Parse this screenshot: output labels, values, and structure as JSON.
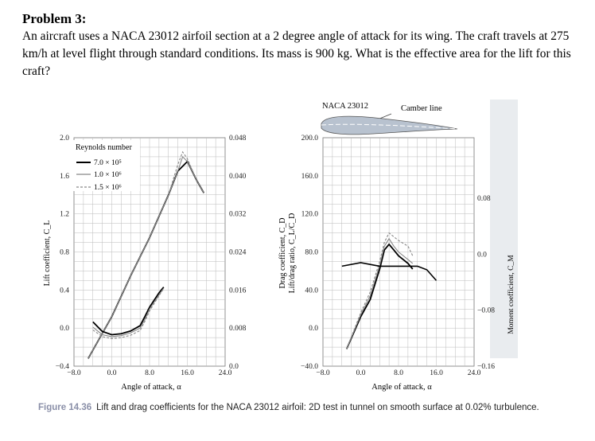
{
  "problem": {
    "title": "Problem 3:",
    "text": "An aircraft uses a NACA 23012 airfoil section at a 2 degree angle of attack for its wing. The craft travels at 275 km/h at level flight through standard conditions. Its mass is 900 kg. What is the effective area for the lift for this craft?"
  },
  "figure": {
    "caption_label": "Figure 14.36",
    "caption_text": "Lift and drag coefficients for the NACA 23012 airfoil: 2D test in tunnel on smooth surface at 0.02% turbulence.",
    "airfoil_label": "NACA 23012",
    "camber_label": "Camber line"
  },
  "chart_data": [
    {
      "type": "line",
      "title": "",
      "xlabel": "Angle of attack, α",
      "ylabel": "Lift coefficient, C_L",
      "ylabel_right": "Drag coefficient, C_D",
      "x_ticks": [
        "−8.0",
        "0.0",
        "8.0",
        "16.0",
        "24.0"
      ],
      "y_ticks": [
        "−0.4",
        "0.0",
        "0.4",
        "0.8",
        "1.2",
        "1.6",
        "2.0"
      ],
      "y_right_ticks": [
        "0.0",
        "0.008",
        "0.016",
        "0.024",
        "0.032",
        "0.040",
        "0.048"
      ],
      "xlim": [
        -8,
        24
      ],
      "ylim": [
        -0.4,
        2.0
      ],
      "y_right_lim": [
        0,
        0.048
      ],
      "legend_title": "Reynolds number",
      "legend": [
        "7.0 × 10⁵",
        "1.0 × 10⁶",
        "1.5 × 10⁶"
      ],
      "series": [
        {
          "name": "C_L, 7.0 × 10⁵",
          "x": [
            -5,
            0,
            4,
            8,
            12,
            14,
            15,
            16,
            18,
            19.5
          ],
          "y": [
            -0.32,
            0.12,
            0.55,
            0.95,
            1.4,
            1.65,
            1.7,
            1.75,
            1.55,
            1.42
          ]
        },
        {
          "name": "C_L, 1.0 × 10⁶",
          "x": [
            -5,
            0,
            4,
            8,
            12,
            14,
            15,
            16,
            18,
            19.5
          ],
          "y": [
            -0.32,
            0.12,
            0.55,
            0.95,
            1.4,
            1.65,
            1.8,
            1.75,
            1.55,
            1.42
          ]
        },
        {
          "name": "C_L, 1.5 × 10⁶",
          "x": [
            -5,
            0,
            4,
            8,
            12,
            14,
            15,
            16,
            18,
            19.5
          ],
          "y": [
            -0.32,
            0.12,
            0.55,
            0.95,
            1.4,
            1.72,
            1.85,
            1.78,
            1.55,
            1.42
          ]
        },
        {
          "name": "C_D, 7.0 × 10⁵",
          "x": [
            -4,
            -2,
            0,
            2,
            4,
            6,
            7,
            8,
            10,
            11
          ],
          "y": [
            0.0093,
            0.0073,
            0.0066,
            0.0068,
            0.0074,
            0.0085,
            0.0104,
            0.0124,
            0.0154,
            0.0166
          ]
        },
        {
          "name": "C_D, 1.0 × 10⁶",
          "x": [
            -4,
            -2,
            0,
            2,
            4,
            6,
            7,
            8,
            10,
            11
          ],
          "y": [
            0.0082,
            0.0066,
            0.0062,
            0.0064,
            0.007,
            0.008,
            0.0098,
            0.012,
            0.015,
            0.0164
          ]
        },
        {
          "name": "C_D, 1.5 × 10⁶",
          "x": [
            -4,
            -2,
            0,
            2,
            4,
            6,
            7,
            8,
            10,
            11
          ],
          "y": [
            0.0076,
            0.0062,
            0.0058,
            0.006,
            0.0065,
            0.0075,
            0.0094,
            0.0116,
            0.0148,
            0.0163
          ]
        }
      ]
    },
    {
      "type": "line",
      "title": "",
      "xlabel": "Angle of attack, α",
      "ylabel": "Lift/drag ratio, C_L/C_D",
      "ylabel_right": "Moment coefficient, C_M",
      "x_ticks": [
        "−8.0",
        "0.0",
        "8.0",
        "16.0",
        "24.0"
      ],
      "y_ticks": [
        "−40.0",
        "0.0",
        "40.0",
        "80.0",
        "120.0",
        "160.0",
        "200.0"
      ],
      "y_right_ticks": [
        "−0.16",
        "−0.08",
        "0.0",
        "0.08"
      ],
      "xlim": [
        -8,
        24
      ],
      "ylim": [
        -40,
        200
      ],
      "y_right_lim": [
        -0.16,
        0.16
      ],
      "series": [
        {
          "name": "C_L/C_D, 7.0 × 10⁵",
          "x": [
            -3,
            0,
            2,
            4,
            5,
            6,
            7,
            8,
            10,
            11
          ],
          "y": [
            -22,
            12,
            30,
            62,
            82,
            88,
            82,
            76,
            68,
            62
          ]
        },
        {
          "name": "C_L/C_D, 1.0 × 10⁶",
          "x": [
            -3,
            0,
            2,
            4,
            5,
            6,
            7,
            8,
            10,
            11
          ],
          "y": [
            -22,
            14,
            34,
            66,
            86,
            94,
            86,
            80,
            72,
            68
          ]
        },
        {
          "name": "C_L/C_D, 1.5 × 10⁶",
          "x": [
            -3,
            0,
            2,
            4,
            5,
            6,
            7,
            8,
            10,
            11
          ],
          "y": [
            -22,
            16,
            38,
            70,
            90,
            100,
            96,
            92,
            86,
            76
          ]
        },
        {
          "name": "C_M",
          "x": [
            -4,
            0,
            4,
            8,
            12,
            14,
            16
          ],
          "y": [
            -0.02,
            -0.015,
            -0.02,
            -0.02,
            -0.02,
            -0.025,
            -0.04
          ]
        }
      ]
    }
  ]
}
